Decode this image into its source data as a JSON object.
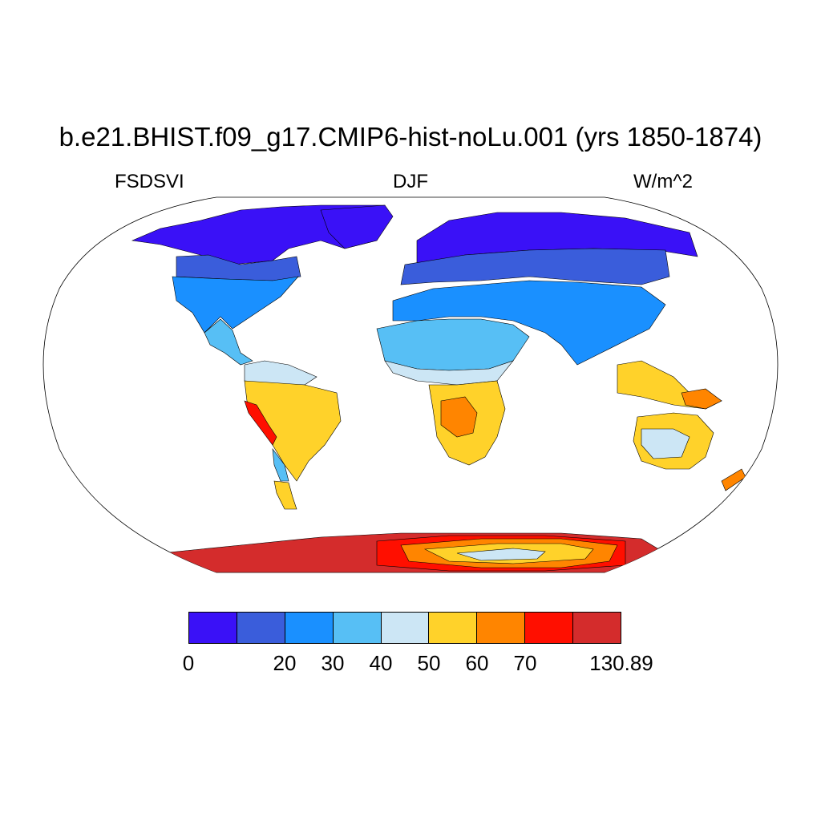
{
  "title": "b.e21.BHIST.f09_g17.CMIP6-hist-noLu.001 (yrs 1850-1874)",
  "variable": "FSDSVI",
  "season": "DJF",
  "units": "W/m^2",
  "map": {
    "projection": "Robinson",
    "description": "Global map of visible incident solar flux",
    "regions": [
      {
        "name": "arctic-canada-siberia",
        "level": 1,
        "color": "#3a11f7"
      },
      {
        "name": "north-america-midlat",
        "level": 2,
        "color": "#3a5ddb"
      },
      {
        "name": "usa-south-europe-asia",
        "level": 3,
        "color": "#1a90ff"
      },
      {
        "name": "sahara-arabia-mexico",
        "level": 4,
        "color": "#57bff5"
      },
      {
        "name": "sahel-australia-interior",
        "level": 5,
        "color": "#cce6f5"
      },
      {
        "name": "south-america-africa-australia",
        "level": 6,
        "color": "#ffd22a"
      },
      {
        "name": "southern-africa-core",
        "level": 7,
        "color": "#ff8500"
      },
      {
        "name": "andes-antarctic-rim",
        "level": 8,
        "color": "#ff0f00"
      },
      {
        "name": "antarctica-coast",
        "level": 9,
        "color": "#d42c2c"
      }
    ]
  },
  "colorbar": {
    "colors": [
      "#3a11f7",
      "#3a5ddb",
      "#1a90ff",
      "#57bff5",
      "#cce6f5",
      "#ffd22a",
      "#ff8500",
      "#ff0f00",
      "#d42c2c"
    ],
    "labels": [
      {
        "text": "0",
        "boundary": 0
      },
      {
        "text": "20",
        "boundary": 2
      },
      {
        "text": "30",
        "boundary": 3
      },
      {
        "text": "40",
        "boundary": 4
      },
      {
        "text": "50",
        "boundary": 5
      },
      {
        "text": "60",
        "boundary": 6
      },
      {
        "text": "70",
        "boundary": 7
      },
      {
        "text": "130.89",
        "boundary": 9
      }
    ]
  }
}
